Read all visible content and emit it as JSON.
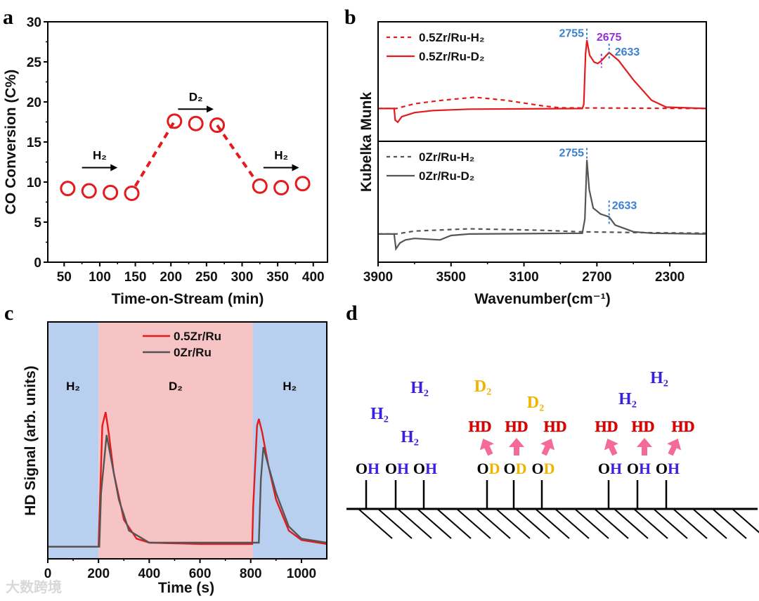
{
  "panel_labels": [
    "a",
    "b",
    "c",
    "d"
  ],
  "colors": {
    "red": "#e41a1c",
    "grey": "#555555",
    "blue_ann": "#3a7fd0",
    "purple_ann": "#9a2fd6",
    "h2_blue": "#3a1fe0",
    "d2_yellow": "#f0b400",
    "hd_red": "#e00000",
    "arrow_pink": "#f46a9b",
    "h2_region": "#b8cff0",
    "d2_region": "#f6c4c4"
  },
  "chart_data": [
    {
      "id": "a",
      "type": "scatter",
      "title": "",
      "xlabel": "Time-on-Stream (min)",
      "ylabel": "CO Conversion (C%)",
      "xlim": [
        27,
        420
      ],
      "ylim": [
        0,
        30
      ],
      "xticks": [
        50,
        100,
        150,
        200,
        250,
        300,
        350,
        400
      ],
      "yticks": [
        0,
        5,
        10,
        15,
        20,
        25,
        30
      ],
      "series": [
        {
          "name": "CO conversion",
          "marker": "open-circle",
          "x": [
            55,
            85,
            115,
            145,
            205,
            235,
            265,
            325,
            355,
            385
          ],
          "y": [
            9.2,
            8.9,
            8.7,
            8.6,
            17.6,
            17.3,
            17.1,
            9.5,
            9.3,
            9.8
          ]
        }
      ],
      "dashed_connectors": [
        [
          [
            150,
            9.5
          ],
          [
            205,
            17.6
          ]
        ],
        [
          [
            265,
            17.1
          ],
          [
            320,
            10.1
          ]
        ]
      ],
      "annotations": [
        {
          "text": "H₂",
          "arrow_from": 75,
          "arrow_to": 125,
          "y": 11.8
        },
        {
          "text": "D₂",
          "arrow_from": 210,
          "arrow_to": 260,
          "y": 19.1
        },
        {
          "text": "H₂",
          "arrow_from": 330,
          "arrow_to": 380,
          "y": 11.8
        }
      ]
    },
    {
      "id": "b",
      "type": "line",
      "xlabel": "Wavenumber(cm⁻¹)",
      "ylabel": "Kubelka Munk",
      "xlim": [
        3900,
        2100
      ],
      "xticks": [
        3900,
        3500,
        3100,
        2700,
        2300
      ],
      "subplots": [
        {
          "ylim": [
            -0.48,
            1.27
          ],
          "series": [
            {
              "name": "0.5Zr/Ru-H₂",
              "style": "dashed",
              "color": "#e41a1c",
              "points": [
                [
                  3900,
                  0
                ],
                [
                  3800,
                  0
                ],
                [
                  3700,
                  0.07
                ],
                [
                  3550,
                  0.12
                ],
                [
                  3370,
                  0.165
                ],
                [
                  3200,
                  0.12
                ],
                [
                  3000,
                  0.04
                ],
                [
                  2900,
                  0.01
                ],
                [
                  2100,
                  0
                ]
              ]
            },
            {
              "name": "0.5Zr/Ru-D₂",
              "style": "solid",
              "color": "#e41a1c",
              "points": [
                [
                  3900,
                  0
                ],
                [
                  3812,
                  0
                ],
                [
                  3806,
                  -0.17
                ],
                [
                  3792,
                  -0.2
                ],
                [
                  3770,
                  -0.12
                ],
                [
                  3700,
                  -0.06
                ],
                [
                  3600,
                  -0.03
                ],
                [
                  3400,
                  -0.01
                ],
                [
                  2780,
                  0
                ],
                [
                  2772,
                  0.06
                ],
                [
                  2762,
                  0.8
                ],
                [
                  2755,
                  1.0
                ],
                [
                  2740,
                  0.78
                ],
                [
                  2715,
                  0.68
                ],
                [
                  2695,
                  0.66
                ],
                [
                  2675,
                  0.7
                ],
                [
                  2633,
                  0.82
                ],
                [
                  2580,
                  0.7
                ],
                [
                  2500,
                  0.42
                ],
                [
                  2400,
                  0.12
                ],
                [
                  2320,
                  0.02
                ],
                [
                  2100,
                  0
                ]
              ]
            }
          ],
          "annotations": [
            {
              "text": "2755",
              "x": 2755,
              "color": "#3a7fd0"
            },
            {
              "text": "2675",
              "x": 2675,
              "color": "#9a2fd6"
            },
            {
              "text": "2633",
              "x": 2633,
              "color": "#3a7fd0"
            }
          ]
        },
        {
          "ylim": [
            -0.38,
            1.25
          ],
          "series": [
            {
              "name": "0Zr/Ru-H₂",
              "style": "dashed",
              "color": "#555555",
              "points": [
                [
                  3900,
                  0
                ],
                [
                  3800,
                  0
                ],
                [
                  3700,
                  0.04
                ],
                [
                  3400,
                  0.07
                ],
                [
                  3000,
                  0.05
                ],
                [
                  2800,
                  0.03
                ],
                [
                  2500,
                  0.02
                ],
                [
                  2100,
                  0.01
                ]
              ]
            },
            {
              "name": "0Zr/Ru-D₂",
              "style": "solid",
              "color": "#555555",
              "points": [
                [
                  3900,
                  0
                ],
                [
                  3812,
                  0
                ],
                [
                  3802,
                  -0.2
                ],
                [
                  3780,
                  -0.12
                ],
                [
                  3750,
                  -0.08
                ],
                [
                  3700,
                  -0.06
                ],
                [
                  3560,
                  -0.08
                ],
                [
                  3500,
                  -0.02
                ],
                [
                  3400,
                  0
                ],
                [
                  2780,
                  0.01
                ],
                [
                  2766,
                  0.2
                ],
                [
                  2755,
                  1.0
                ],
                [
                  2742,
                  0.6
                ],
                [
                  2720,
                  0.35
                ],
                [
                  2680,
                  0.27
                ],
                [
                  2633,
                  0.23
                ],
                [
                  2600,
                  0.12
                ],
                [
                  2500,
                  0.03
                ],
                [
                  2400,
                  0.01
                ],
                [
                  2100,
                  0
                ]
              ]
            }
          ],
          "annotations": [
            {
              "text": "2755",
              "x": 2755,
              "color": "#3a7fd0"
            },
            {
              "text": "2633",
              "x": 2633,
              "color": "#3a7fd0"
            }
          ]
        }
      ]
    },
    {
      "id": "c",
      "type": "line",
      "xlabel": "Time (s)",
      "ylabel": "HD Signal (arb. units)",
      "xlim": [
        0,
        1100
      ],
      "ylim": [
        -0.09,
        1.67
      ],
      "xticks": [
        0,
        200,
        400,
        600,
        800,
        1000
      ],
      "regions": [
        {
          "label": "H₂",
          "from": 0,
          "to": 200,
          "gas": "H2"
        },
        {
          "label": "D₂",
          "from": 200,
          "to": 808,
          "gas": "D2"
        },
        {
          "label": "H₂",
          "from": 808,
          "to": 1100,
          "gas": "H2"
        }
      ],
      "legend": "top-center",
      "series": [
        {
          "name": "0.5Zr/Ru",
          "color": "#e41a1c",
          "points": [
            [
              0,
              0
            ],
            [
              200,
              0
            ],
            [
              205,
              0.3
            ],
            [
              215,
              0.9
            ],
            [
              228,
              1.0
            ],
            [
              240,
              0.85
            ],
            [
              260,
              0.55
            ],
            [
              300,
              0.2
            ],
            [
              350,
              0.06
            ],
            [
              400,
              0.03
            ],
            [
              600,
              0.02
            ],
            [
              806,
              0.02
            ],
            [
              810,
              0.3
            ],
            [
              825,
              0.9
            ],
            [
              832,
              0.95
            ],
            [
              845,
              0.85
            ],
            [
              870,
              0.6
            ],
            [
              900,
              0.35
            ],
            [
              950,
              0.12
            ],
            [
              1000,
              0.05
            ],
            [
              1100,
              0.02
            ]
          ]
        },
        {
          "name": "0Zr/Ru",
          "color": "#555555",
          "points": [
            [
              0,
              0
            ],
            [
              203,
              0
            ],
            [
              210,
              0.4
            ],
            [
              232,
              0.83
            ],
            [
              250,
              0.65
            ],
            [
              280,
              0.35
            ],
            [
              320,
              0.12
            ],
            [
              400,
              0.03
            ],
            [
              808,
              0.03
            ],
            [
              832,
              0.03
            ],
            [
              840,
              0.5
            ],
            [
              850,
              0.74
            ],
            [
              870,
              0.6
            ],
            [
              900,
              0.4
            ],
            [
              950,
              0.15
            ],
            [
              1000,
              0.06
            ],
            [
              1100,
              0.03
            ]
          ]
        }
      ]
    }
  ],
  "diagram_d": {
    "molecules": [
      {
        "text": "H₂",
        "kind": "h2"
      },
      {
        "text": "H₂",
        "kind": "h2"
      },
      {
        "text": "H₂",
        "kind": "h2"
      },
      {
        "text": "D₂",
        "kind": "d2"
      },
      {
        "text": "D₂",
        "kind": "d2"
      },
      {
        "text": "H₂",
        "kind": "h2"
      },
      {
        "text": "H₂",
        "kind": "h2"
      }
    ],
    "hd_products": [
      "HD",
      "HD",
      "HD",
      "HD",
      "HD",
      "HD"
    ],
    "sites": [
      {
        "o": "O",
        "h": "H"
      },
      {
        "o": "O",
        "h": "H"
      },
      {
        "o": "O",
        "h": "H"
      },
      {
        "o": "O",
        "h": "D"
      },
      {
        "o": "O",
        "h": "D"
      },
      {
        "o": "O",
        "h": "D"
      },
      {
        "o": "O",
        "h": "H"
      },
      {
        "o": "O",
        "h": "H"
      },
      {
        "o": "O",
        "h": "H"
      }
    ]
  },
  "watermark": "大数跨境"
}
